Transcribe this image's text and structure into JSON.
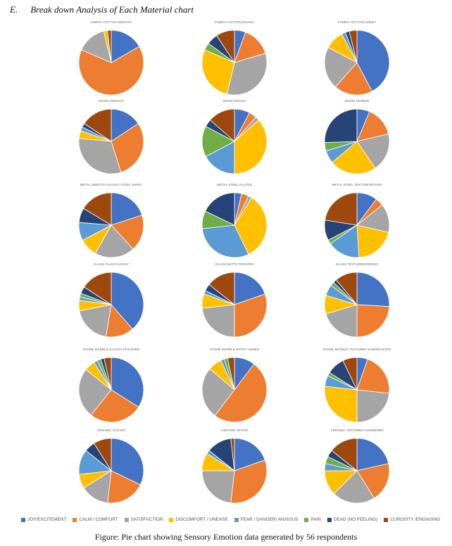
{
  "heading": {
    "letter": "E.",
    "title": "Break down Analysis of Each Material chart"
  },
  "caption": "Figure: Pie chart showing Sensory Emotion data generated by 56 respondents",
  "legend": [
    {
      "label": "JOY/EXCITEMENT",
      "color": "#4472C4"
    },
    {
      "label": "CALM / COMFORT",
      "color": "#ED7D31"
    },
    {
      "label": "SATISFACTION",
      "color": "#A5A5A5"
    },
    {
      "label": "DISCOMFORT / UNEASE",
      "color": "#FFC000"
    },
    {
      "label": "FEAR / DANGER/ ANXIOUS",
      "color": "#5B9BD5"
    },
    {
      "label": "PAIN",
      "color": "#70AD47"
    },
    {
      "label": "DEAD (NO FEELING)",
      "color": "#264478"
    },
    {
      "label": "CUROSITY /ENGAGING",
      "color": "#9E480E"
    }
  ],
  "chart_data": [
    {
      "type": "pie",
      "title": "FABRIC COTTON SMOOTH",
      "values": [
        9,
        35,
        8,
        1,
        0,
        0,
        0,
        1
      ]
    },
    {
      "type": "pie",
      "title": "FABRIC COTTON ROUGH",
      "values": [
        3,
        8,
        18,
        15,
        0,
        2,
        3,
        5
      ]
    },
    {
      "type": "pie",
      "title": "FABRIC COTTON SHEET",
      "values": [
        22,
        10,
        11,
        5,
        1,
        0,
        1,
        2
      ]
    },
    {
      "type": "pie",
      "title": "WOOD SMOOTH",
      "values": [
        8,
        15,
        16,
        2,
        1,
        0,
        1,
        8
      ]
    },
    {
      "type": "pie",
      "title": "WOOD ROUGH",
      "values": [
        4,
        2,
        1,
        19,
        9,
        8,
        2,
        7
      ]
    },
    {
      "type": "pie",
      "title": "WOOD VENEER",
      "values": [
        3,
        7,
        9,
        11,
        3,
        2,
        12,
        0
      ]
    },
    {
      "type": "pie",
      "title": "METAL SMOOTH GLOSSY STEEL SHEET",
      "values": [
        11,
        10,
        11,
        5,
        5,
        0,
        4,
        9
      ]
    },
    {
      "type": "pie",
      "title": "METAL STEEL FLUTED",
      "values": [
        2,
        2,
        1,
        19,
        17,
        5,
        10,
        0
      ]
    },
    {
      "type": "pie",
      "title": "METAL STEEL TEXTURE/ROUGH",
      "values": [
        5,
        2,
        7,
        10,
        8,
        1,
        5,
        11
      ]
    },
    {
      "type": "pie",
      "title": "GLASS PLAIN GLOSSY",
      "values": [
        22,
        8,
        11,
        3,
        1,
        1,
        2,
        9
      ]
    },
    {
      "type": "pie",
      "title": "GLASS MATTE FROSTED",
      "values": [
        11,
        17,
        13,
        4,
        1,
        0,
        2,
        8
      ]
    },
    {
      "type": "pie",
      "title": "GLASS TEXTURED/RIDGES",
      "values": [
        14,
        13,
        11,
        5,
        3,
        1,
        1,
        6
      ]
    },
    {
      "type": "pie",
      "title": "STONE MARBLE GLOSSY POLISHED",
      "values": [
        19,
        15,
        14,
        3,
        1,
        1,
        1,
        2
      ]
    },
    {
      "type": "pie",
      "title": "STONE MARBLE MATTE HONED",
      "values": [
        6,
        29,
        15,
        4,
        1,
        1,
        0,
        2
      ]
    },
    {
      "type": "pie",
      "title": "STONE MARBLE TEXTURED SANDBLASTED",
      "values": [
        3,
        12,
        13,
        15,
        3,
        1,
        5,
        4
      ]
    },
    {
      "type": "pie",
      "title": "CERAMIC GLOSSY",
      "values": [
        18,
        11,
        8,
        4,
        7,
        0,
        3,
        5
      ]
    },
    {
      "type": "pie",
      "title": "CERAMIC MATTE",
      "values": [
        11,
        18,
        13,
        5,
        1,
        0,
        7,
        1
      ]
    },
    {
      "type": "pie",
      "title": "CERAMIC TEXTURED HAMMERED",
      "values": [
        12,
        11,
        12,
        7,
        2,
        2,
        2,
        8
      ]
    }
  ]
}
